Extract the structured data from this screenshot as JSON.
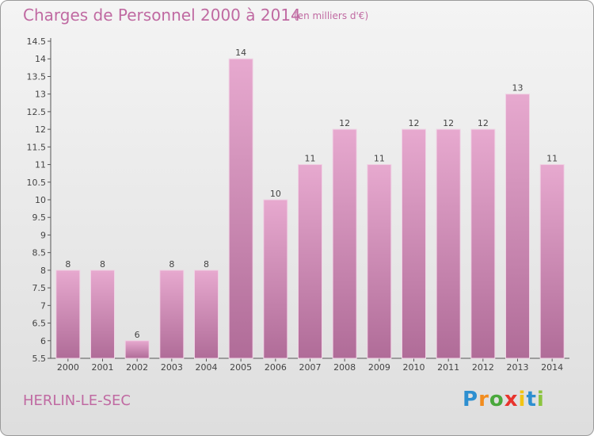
{
  "header": {
    "title": "Charges de Personnel 2000 à 2014",
    "subtitle": "(en milliers d'€)"
  },
  "footer": {
    "commune": "HERLIN-LE-SEC",
    "logo": [
      "P",
      "r",
      "o",
      "x",
      "i",
      "t",
      "i"
    ]
  },
  "colors": {
    "title": "#c06aa2",
    "bar_light": "#e7a9cf",
    "bar_dark": "#b06c98",
    "logo_letters": [
      "#2d8fd0",
      "#f28c1e",
      "#4aa83c",
      "#e8342d",
      "#f2c414",
      "#2d8fd0",
      "#8bc43f"
    ]
  },
  "chart_data": {
    "type": "bar",
    "title": "Charges de Personnel 2000 à 2014",
    "subtitle": "(en milliers d'€)",
    "xlabel": "",
    "ylabel": "",
    "categories": [
      "2000",
      "2001",
      "2002",
      "2003",
      "2004",
      "2005",
      "2006",
      "2007",
      "2008",
      "2009",
      "2010",
      "2011",
      "2012",
      "2013",
      "2014"
    ],
    "values": [
      8,
      8,
      6,
      8,
      8,
      14,
      10,
      11,
      12,
      11,
      12,
      12,
      12,
      13,
      11
    ],
    "ylim": [
      5.5,
      14.5
    ],
    "yticks": [
      "5.5",
      "6",
      "6.5",
      "7",
      "7.5",
      "8",
      "8.5",
      "9",
      "9.5",
      "10",
      "10.5",
      "11",
      "11.5",
      "12",
      "12.5",
      "13",
      "13.5",
      "14",
      "14.5"
    ],
    "grid": false,
    "legend": "none"
  }
}
